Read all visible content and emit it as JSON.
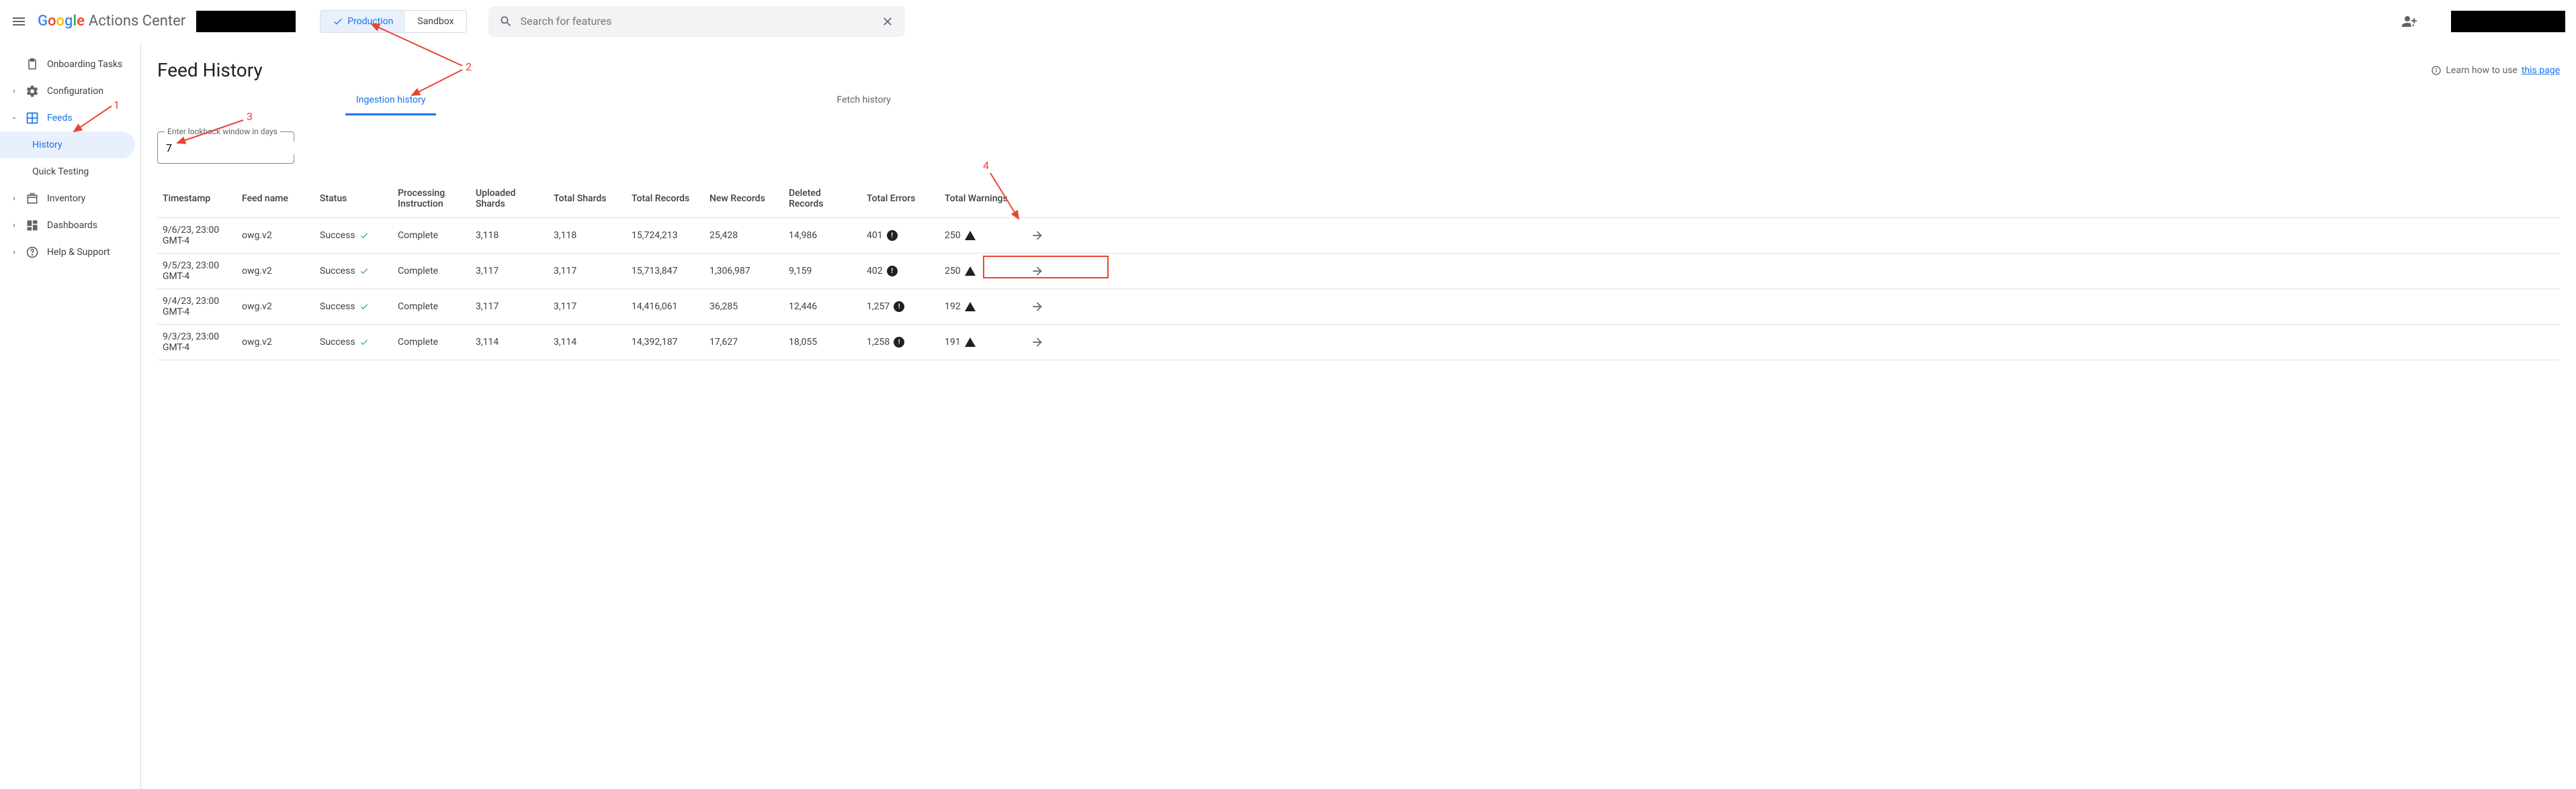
{
  "header": {
    "product_name": "Actions Center",
    "env_tabs": {
      "production": "Production",
      "sandbox": "Sandbox"
    },
    "search_placeholder": "Search for features"
  },
  "sidebar": {
    "items": [
      {
        "label": "Onboarding Tasks",
        "icon": "clipboard"
      },
      {
        "label": "Configuration",
        "icon": "gear",
        "expandable": true
      },
      {
        "label": "Feeds",
        "icon": "grid",
        "expandable": true,
        "expanded": true
      },
      {
        "label": "Inventory",
        "icon": "inventory",
        "expandable": true
      },
      {
        "label": "Dashboards",
        "icon": "dashboard",
        "expandable": true
      },
      {
        "label": "Help & Support",
        "icon": "help",
        "expandable": true
      }
    ],
    "feeds_subitems": [
      {
        "label": "History",
        "selected": true
      },
      {
        "label": "Quick Testing",
        "selected": false
      }
    ]
  },
  "main": {
    "title": "Feed History",
    "learn_text": "Learn how to use ",
    "learn_link": "this page",
    "tabs": {
      "ingestion": "Ingestion history",
      "fetch": "Fetch history"
    },
    "lookback": {
      "label": "Enter lookback window in days",
      "value": "7"
    },
    "columns": {
      "timestamp": "Timestamp",
      "feedname": "Feed name",
      "status": "Status",
      "processing": "Processing Instruction",
      "uploaded": "Uploaded Shards",
      "totalshards": "Total Shards",
      "totalrecords": "Total Records",
      "newrecords": "New Records",
      "deleted": "Deleted Records",
      "errors": "Total Errors",
      "warnings": "Total Warnings"
    },
    "rows": [
      {
        "timestamp": "9/6/23, 23:00 GMT-4",
        "feedname": "owg.v2",
        "status": "Success",
        "processing": "Complete",
        "uploaded": "3,118",
        "totalshards": "3,118",
        "totalrecords": "15,724,213",
        "newrecords": "25,428",
        "deleted": "14,986",
        "errors": "401",
        "warnings": "250"
      },
      {
        "timestamp": "9/5/23, 23:00 GMT-4",
        "feedname": "owg.v2",
        "status": "Success",
        "processing": "Complete",
        "uploaded": "3,117",
        "totalshards": "3,117",
        "totalrecords": "15,713,847",
        "newrecords": "1,306,987",
        "deleted": "9,159",
        "errors": "402",
        "warnings": "250"
      },
      {
        "timestamp": "9/4/23, 23:00 GMT-4",
        "feedname": "owg.v2",
        "status": "Success",
        "processing": "Complete",
        "uploaded": "3,117",
        "totalshards": "3,117",
        "totalrecords": "14,416,061",
        "newrecords": "36,285",
        "deleted": "12,446",
        "errors": "1,257",
        "warnings": "192"
      },
      {
        "timestamp": "9/3/23, 23:00 GMT-4",
        "feedname": "owg.v2",
        "status": "Success",
        "processing": "Complete",
        "uploaded": "3,114",
        "totalshards": "3,114",
        "totalrecords": "14,392,187",
        "newrecords": "17,627",
        "deleted": "18,055",
        "errors": "1,258",
        "warnings": "191"
      }
    ]
  },
  "annotations": {
    "a1": "1",
    "a2": "2",
    "a3": "3",
    "a4": "4"
  },
  "colors": {
    "primary_blue": "#1a73e8",
    "annotation_red": "#ea4335",
    "text_gray": "#5f6368",
    "success_green": "#34a853"
  }
}
